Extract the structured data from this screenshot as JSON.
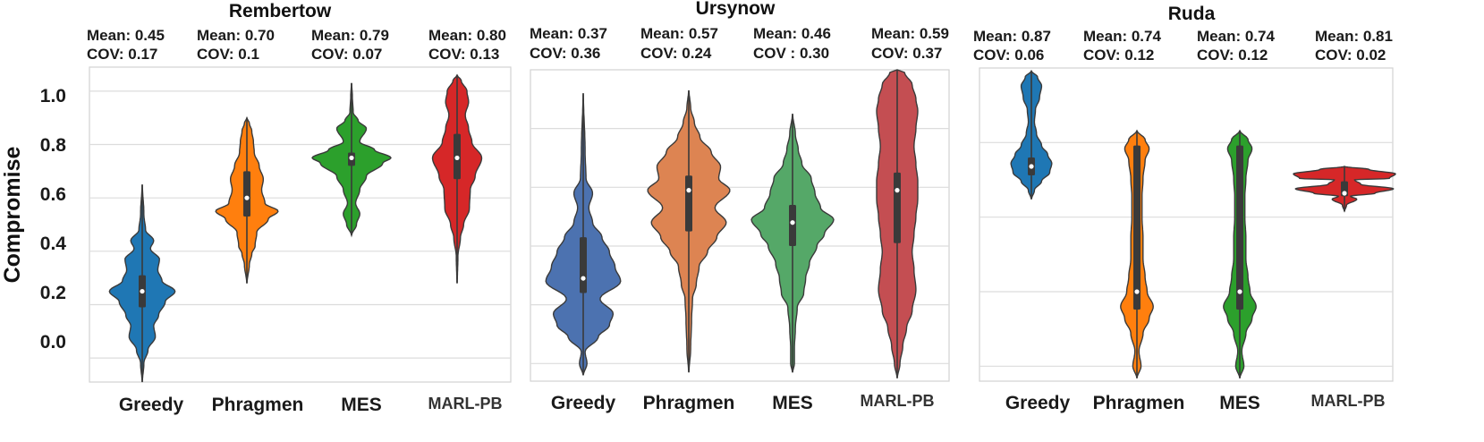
{
  "chart_data": [
    {
      "type": "violin",
      "title": "Rembertow",
      "ylabel": "Compromise",
      "ylim": [
        -0.09,
        1.09
      ],
      "yticks": [
        "0.0",
        "0.2",
        "0.4",
        "0.6",
        "0.8",
        "1.0"
      ],
      "categories": [
        "Greedy",
        "Phragmen",
        "MES",
        "MARL-PB"
      ],
      "stats": [
        {
          "mean_label": "Mean: 0.45",
          "cov_label": "COV:  0.17"
        },
        {
          "mean_label": "Mean: 0.70",
          "cov_label": "COV:  0.1"
        },
        {
          "mean_label": "Mean: 0.79",
          "cov_label": "COV:  0.07"
        },
        {
          "mean_label": "Mean: 0.80",
          "cov_label": "COV:  0.13"
        }
      ],
      "series": [
        {
          "name": "Greedy",
          "color": "#1f77b4",
          "median": 0.25,
          "q1": 0.19,
          "q3": 0.31,
          "shape": [
            [
              -0.09,
              0.2
            ],
            [
              -0.02,
              2
            ],
            [
              0.03,
              7
            ],
            [
              0.08,
              16
            ],
            [
              0.12,
              14
            ],
            [
              0.16,
              20
            ],
            [
              0.21,
              28
            ],
            [
              0.25,
              40
            ],
            [
              0.29,
              24
            ],
            [
              0.33,
              19
            ],
            [
              0.37,
              21
            ],
            [
              0.41,
              10
            ],
            [
              0.44,
              14
            ],
            [
              0.48,
              4
            ],
            [
              0.54,
              2
            ],
            [
              0.65,
              0.2
            ]
          ]
        },
        {
          "name": "Phragmen",
          "color": "#ff7f0e",
          "median": 0.6,
          "q1": 0.53,
          "q3": 0.7,
          "shape": [
            [
              0.28,
              0.2
            ],
            [
              0.35,
              3
            ],
            [
              0.39,
              6
            ],
            [
              0.42,
              10
            ],
            [
              0.47,
              12
            ],
            [
              0.52,
              26
            ],
            [
              0.55,
              38
            ],
            [
              0.58,
              22
            ],
            [
              0.63,
              18
            ],
            [
              0.67,
              20
            ],
            [
              0.72,
              15
            ],
            [
              0.77,
              9
            ],
            [
              0.81,
              8
            ],
            [
              0.85,
              6
            ],
            [
              0.88,
              3
            ],
            [
              0.9,
              0.2
            ]
          ]
        },
        {
          "name": "MES",
          "color": "#2ca02c",
          "median": 0.75,
          "q1": 0.72,
          "q3": 0.77,
          "shape": [
            [
              0.46,
              0.2
            ],
            [
              0.5,
              6
            ],
            [
              0.54,
              10
            ],
            [
              0.58,
              5
            ],
            [
              0.63,
              10
            ],
            [
              0.68,
              18
            ],
            [
              0.73,
              38
            ],
            [
              0.75,
              48
            ],
            [
              0.78,
              28
            ],
            [
              0.81,
              10
            ],
            [
              0.86,
              18
            ],
            [
              0.89,
              8
            ],
            [
              0.92,
              2
            ],
            [
              0.98,
              1
            ],
            [
              1.03,
              0.2
            ]
          ]
        },
        {
          "name": "MARL-PB",
          "color": "#d62728",
          "median": 0.75,
          "q1": 0.67,
          "q3": 0.84,
          "shape": [
            [
              0.28,
              0.2
            ],
            [
              0.38,
              1
            ],
            [
              0.45,
              4
            ],
            [
              0.5,
              8
            ],
            [
              0.56,
              15
            ],
            [
              0.63,
              16
            ],
            [
              0.68,
              22
            ],
            [
              0.75,
              30
            ],
            [
              0.81,
              18
            ],
            [
              0.86,
              14
            ],
            [
              0.91,
              10
            ],
            [
              0.96,
              14
            ],
            [
              1.0,
              12
            ],
            [
              1.04,
              5
            ],
            [
              1.06,
              0.2
            ]
          ]
        }
      ]
    },
    {
      "type": "violin",
      "title": "Ursynow",
      "ylabel": "",
      "ylim": [
        -0.06,
        1.0
      ],
      "yticks": [],
      "categories": [
        "Greedy",
        "Phragmen",
        "MES",
        "MARL-PB"
      ],
      "stats": [
        {
          "mean_label": "Mean: 0.37",
          "cov_label": "COV:  0.36"
        },
        {
          "mean_label": "Mean: 0.57",
          "cov_label": "COV:  0.24"
        },
        {
          "mean_label": "Mean: 0.46",
          "cov_label": "COV : 0.30"
        },
        {
          "mean_label": "Mean: 0.59",
          "cov_label": "COV:  0.37"
        }
      ],
      "series": [
        {
          "name": "Greedy",
          "color": "#4c72b0",
          "median": 0.29,
          "q1": 0.24,
          "q3": 0.43,
          "shape": [
            [
              -0.04,
              0.2
            ],
            [
              0.0,
              4
            ],
            [
              0.04,
              2
            ],
            [
              0.09,
              16
            ],
            [
              0.13,
              28
            ],
            [
              0.17,
              32
            ],
            [
              0.22,
              18
            ],
            [
              0.28,
              40
            ],
            [
              0.33,
              34
            ],
            [
              0.38,
              28
            ],
            [
              0.43,
              20
            ],
            [
              0.48,
              10
            ],
            [
              0.53,
              6
            ],
            [
              0.58,
              10
            ],
            [
              0.63,
              3
            ],
            [
              0.72,
              2
            ],
            [
              0.92,
              0.2
            ]
          ]
        },
        {
          "name": "Phragmen",
          "color": "#dd8452",
          "median": 0.59,
          "q1": 0.45,
          "q3": 0.64,
          "shape": [
            [
              -0.03,
              0.2
            ],
            [
              0.05,
              2
            ],
            [
              0.15,
              3
            ],
            [
              0.22,
              4
            ],
            [
              0.27,
              8
            ],
            [
              0.33,
              11
            ],
            [
              0.38,
              20
            ],
            [
              0.43,
              30
            ],
            [
              0.48,
              40
            ],
            [
              0.53,
              28
            ],
            [
              0.59,
              44
            ],
            [
              0.63,
              32
            ],
            [
              0.67,
              34
            ],
            [
              0.72,
              24
            ],
            [
              0.77,
              12
            ],
            [
              0.82,
              6
            ],
            [
              0.87,
              2
            ],
            [
              0.93,
              0.2
            ]
          ]
        },
        {
          "name": "MES",
          "color": "#55a868",
          "median": 0.48,
          "q1": 0.4,
          "q3": 0.54,
          "shape": [
            [
              -0.03,
              0.2
            ],
            [
              0.0,
              2
            ],
            [
              0.05,
              2
            ],
            [
              0.12,
              3
            ],
            [
              0.19,
              5
            ],
            [
              0.24,
              12
            ],
            [
              0.29,
              14
            ],
            [
              0.34,
              18
            ],
            [
              0.4,
              26
            ],
            [
              0.44,
              34
            ],
            [
              0.49,
              44
            ],
            [
              0.53,
              30
            ],
            [
              0.58,
              24
            ],
            [
              0.63,
              20
            ],
            [
              0.68,
              10
            ],
            [
              0.73,
              6
            ],
            [
              0.78,
              3
            ],
            [
              0.85,
              0.2
            ]
          ]
        },
        {
          "name": "MARL-PB",
          "color": "#c44e52",
          "median": 0.59,
          "q1": 0.41,
          "q3": 0.65,
          "shape": [
            [
              -0.05,
              0.2
            ],
            [
              0.0,
              3
            ],
            [
              0.06,
              6
            ],
            [
              0.12,
              10
            ],
            [
              0.18,
              16
            ],
            [
              0.25,
              20
            ],
            [
              0.32,
              18
            ],
            [
              0.38,
              16
            ],
            [
              0.44,
              18
            ],
            [
              0.5,
              20
            ],
            [
              0.56,
              22
            ],
            [
              0.62,
              22
            ],
            [
              0.68,
              20
            ],
            [
              0.74,
              18
            ],
            [
              0.8,
              20
            ],
            [
              0.86,
              22
            ],
            [
              0.9,
              20
            ],
            [
              0.95,
              16
            ],
            [
              0.99,
              8
            ],
            [
              1.0,
              0.2
            ]
          ]
        }
      ]
    },
    {
      "type": "violin",
      "title": "Ruda",
      "ylabel": "",
      "ylim": [
        -0.05,
        1.0
      ],
      "yticks": [],
      "categories": [
        "Greedy",
        "Phragmen",
        "MES",
        "MARL-PB"
      ],
      "stats": [
        {
          "mean_label": "Mean: 0.87",
          "cov_label": "COV:  0.06"
        },
        {
          "mean_label": "Mean: 0.74",
          "cov_label": "COV:  0.12"
        },
        {
          "mean_label": "Mean: 0.74",
          "cov_label": "COV:  0.12"
        },
        {
          "mean_label": "Mean: 0.81",
          "cov_label": "COV:  0.02"
        }
      ],
      "series": [
        {
          "name": "Greedy",
          "color": "#1f77b4",
          "median": 0.67,
          "q1": 0.64,
          "q3": 0.7,
          "shape": [
            [
              0.56,
              0.2
            ],
            [
              0.59,
              3
            ],
            [
              0.62,
              10
            ],
            [
              0.65,
              18
            ],
            [
              0.68,
              20
            ],
            [
              0.71,
              16
            ],
            [
              0.74,
              10
            ],
            [
              0.78,
              5
            ],
            [
              0.82,
              3
            ],
            [
              0.86,
              4
            ],
            [
              0.9,
              8
            ],
            [
              0.94,
              10
            ],
            [
              0.97,
              6
            ],
            [
              0.99,
              0.2
            ]
          ]
        },
        {
          "name": "Phragmen",
          "color": "#ff7f0e",
          "median": 0.25,
          "q1": 0.19,
          "q3": 0.74,
          "shape": [
            [
              -0.04,
              0.2
            ],
            [
              0.0,
              4
            ],
            [
              0.05,
              2
            ],
            [
              0.11,
              6
            ],
            [
              0.16,
              12
            ],
            [
              0.2,
              16
            ],
            [
              0.25,
              10
            ],
            [
              0.3,
              8
            ],
            [
              0.36,
              6
            ],
            [
              0.43,
              6
            ],
            [
              0.5,
              5
            ],
            [
              0.57,
              5
            ],
            [
              0.63,
              6
            ],
            [
              0.69,
              8
            ],
            [
              0.73,
              12
            ],
            [
              0.76,
              8
            ],
            [
              0.79,
              0.2
            ]
          ]
        },
        {
          "name": "MES",
          "color": "#2ca02c",
          "median": 0.25,
          "q1": 0.19,
          "q3": 0.74,
          "shape": [
            [
              -0.04,
              0.2
            ],
            [
              0.0,
              4
            ],
            [
              0.05,
              2
            ],
            [
              0.11,
              6
            ],
            [
              0.16,
              12
            ],
            [
              0.2,
              16
            ],
            [
              0.25,
              10
            ],
            [
              0.3,
              8
            ],
            [
              0.36,
              6
            ],
            [
              0.43,
              6
            ],
            [
              0.5,
              5
            ],
            [
              0.57,
              5
            ],
            [
              0.63,
              6
            ],
            [
              0.69,
              8
            ],
            [
              0.73,
              12
            ],
            [
              0.76,
              8
            ],
            [
              0.79,
              0.2
            ]
          ]
        },
        {
          "name": "MARL-PB",
          "color": "#d62728",
          "median": 0.58,
          "q1": 0.57,
          "q3": 0.62,
          "shape": [
            [
              0.52,
              0.2
            ],
            [
              0.54,
              2
            ],
            [
              0.56,
              12
            ],
            [
              0.57,
              6
            ],
            [
              0.58,
              30
            ],
            [
              0.595,
              48
            ],
            [
              0.61,
              16
            ],
            [
              0.625,
              10
            ],
            [
              0.63,
              44
            ],
            [
              0.645,
              50
            ],
            [
              0.66,
              24
            ],
            [
              0.67,
              0.2
            ]
          ]
        }
      ]
    }
  ]
}
